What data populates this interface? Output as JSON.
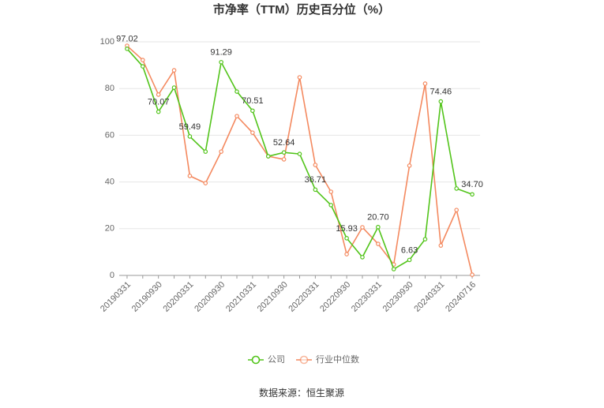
{
  "chart_data": {
    "type": "line",
    "title": "市净率（TTM）历史百分位（%）",
    "categories": [
      "20190331",
      null,
      "20190930",
      null,
      "20200331",
      null,
      "20200930",
      null,
      "20210331",
      null,
      "20210930",
      null,
      "20220331",
      null,
      "20220930",
      null,
      "20230331",
      null,
      "20230930",
      null,
      "20240331",
      null,
      "20240716"
    ],
    "series": [
      {
        "name": "公司",
        "color": "#52c41a",
        "values": [
          97.02,
          89.5,
          70.07,
          80.4,
          59.49,
          53.0,
          91.29,
          78.7,
          70.51,
          51.0,
          52.64,
          52.0,
          36.71,
          30.1,
          15.93,
          7.8,
          20.7,
          2.7,
          6.63,
          15.5,
          74.46,
          37.2,
          34.7
        ],
        "value_labels": [
          "97.02",
          null,
          "70.07",
          null,
          "59.49",
          null,
          "91.29",
          null,
          "70.51",
          null,
          "52.64",
          null,
          "36.71",
          null,
          "15.93",
          null,
          "20.70",
          null,
          "6.63",
          null,
          "74.46",
          null,
          "34.70"
        ]
      },
      {
        "name": "行业中位数",
        "color": "#f4895f",
        "values": [
          98.3,
          92.2,
          77.4,
          87.8,
          42.6,
          39.5,
          53.0,
          68.2,
          61.1,
          51.0,
          49.7,
          84.8,
          47.3,
          35.8,
          9.1,
          20.6,
          13.5,
          4.7,
          47.0,
          82.1,
          12.8,
          28.0,
          0.3
        ]
      }
    ],
    "ylim": [
      0,
      100
    ],
    "yticks": [
      0,
      20,
      40,
      60,
      80,
      100
    ],
    "grid": true,
    "source": "数据来源：恒生聚源"
  }
}
